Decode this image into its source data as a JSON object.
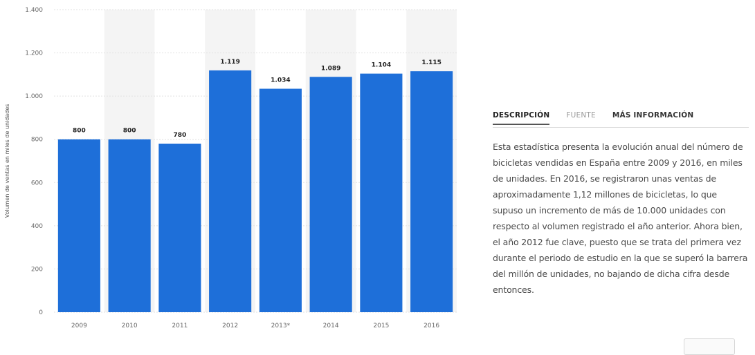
{
  "chart_data": {
    "type": "bar",
    "title": "",
    "xlabel": "",
    "ylabel": "Volumen de ventas en miles de unidades",
    "categories": [
      "2009",
      "2010",
      "2011",
      "2012",
      "2013*",
      "2014",
      "2015",
      "2016"
    ],
    "values": [
      800,
      800,
      780,
      1119,
      1034,
      1089,
      1104,
      1115
    ],
    "value_labels": [
      "800",
      "800",
      "780",
      "1.119",
      "1.034",
      "1.089",
      "1.104",
      "1.115"
    ],
    "ylim": [
      0,
      1400
    ],
    "yticks": [
      0,
      200,
      400,
      600,
      800,
      1000,
      1200,
      1400
    ],
    "ytick_labels": [
      "0",
      "200",
      "400",
      "600",
      "800",
      "1.000",
      "1.200",
      "1.400"
    ],
    "grid": true,
    "legend": "none",
    "bar_color": "#1e6fd9",
    "band_color": "#f4f4f4"
  },
  "panel": {
    "tabs": [
      {
        "label": "DESCRIPCIÓN",
        "active": true
      },
      {
        "label": "FUENTE",
        "active": false
      },
      {
        "label": "MÁS INFORMACIÓN",
        "active": false
      }
    ],
    "description": "Esta estadística presenta la evolución anual del número de bicicletas vendidas en España entre 2009 y 2016, en miles de unidades. En 2016, se registraron unas ventas de aproximadamente 1,12 millones de bicicletas, lo que supuso un incremento de más de 10.000 unidades con respecto al volumen registrado el año anterior. Ahora bien, el año 2012 fue clave, puesto que se trata del primera vez durante el periodo de estudio en la que se superó la barrera del millón de unidades, no bajando de dicha cifra desde entonces."
  }
}
